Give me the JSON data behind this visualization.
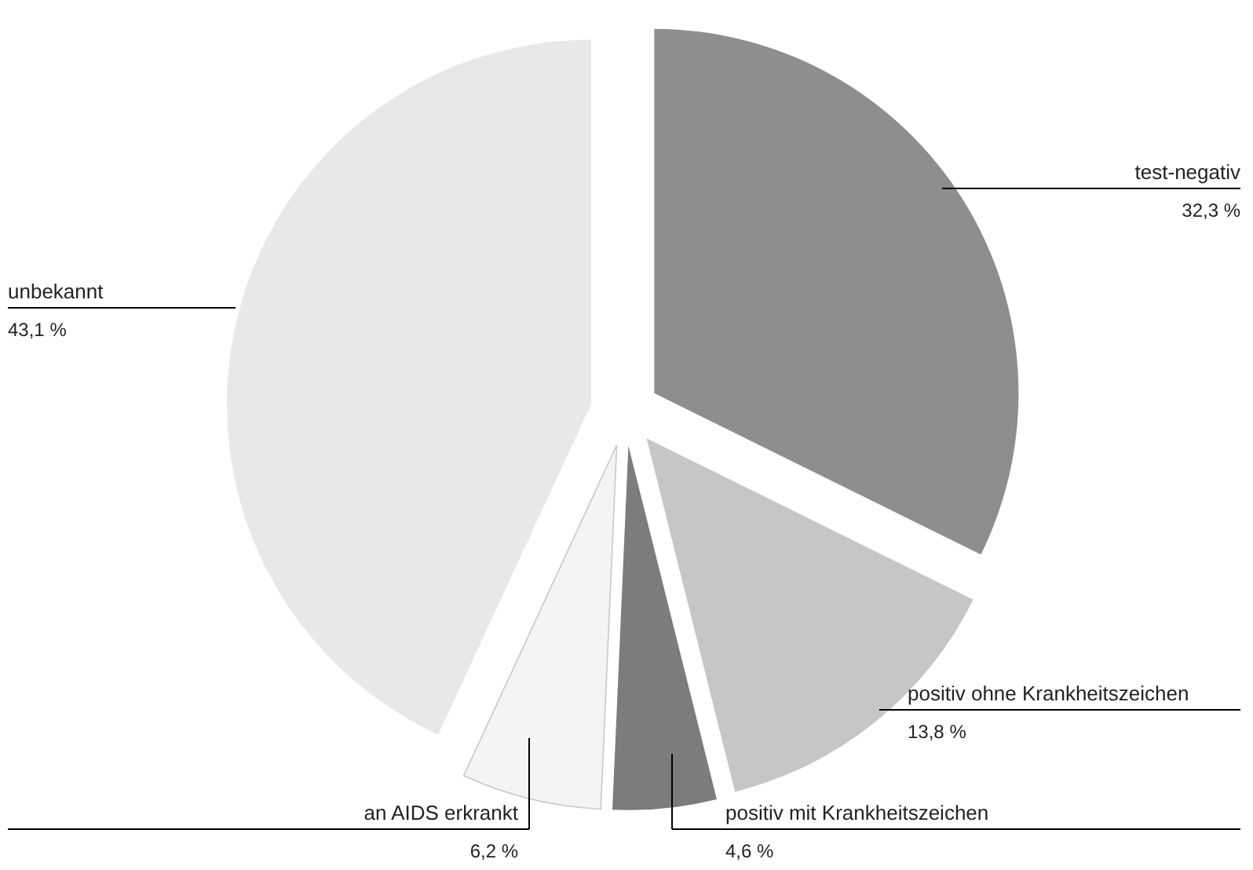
{
  "chart_data": {
    "type": "pie",
    "categories": [
      "test-negativ",
      "positiv ohne Krankheitszeichen",
      "positiv mit Krankheitszeichen",
      "an AIDS erkrankt",
      "unbekannt"
    ],
    "values": [
      32.3,
      13.8,
      4.6,
      6.2,
      43.1
    ],
    "colors": [
      "#8e8e8e",
      "#c6c6c6",
      "#7c7c7c",
      "#f4f4f4",
      "#e8e8e8"
    ],
    "value_labels": [
      "32,3 %",
      "13,8 %",
      "4,6 %",
      "6,2 %",
      "43,1 %"
    ]
  }
}
